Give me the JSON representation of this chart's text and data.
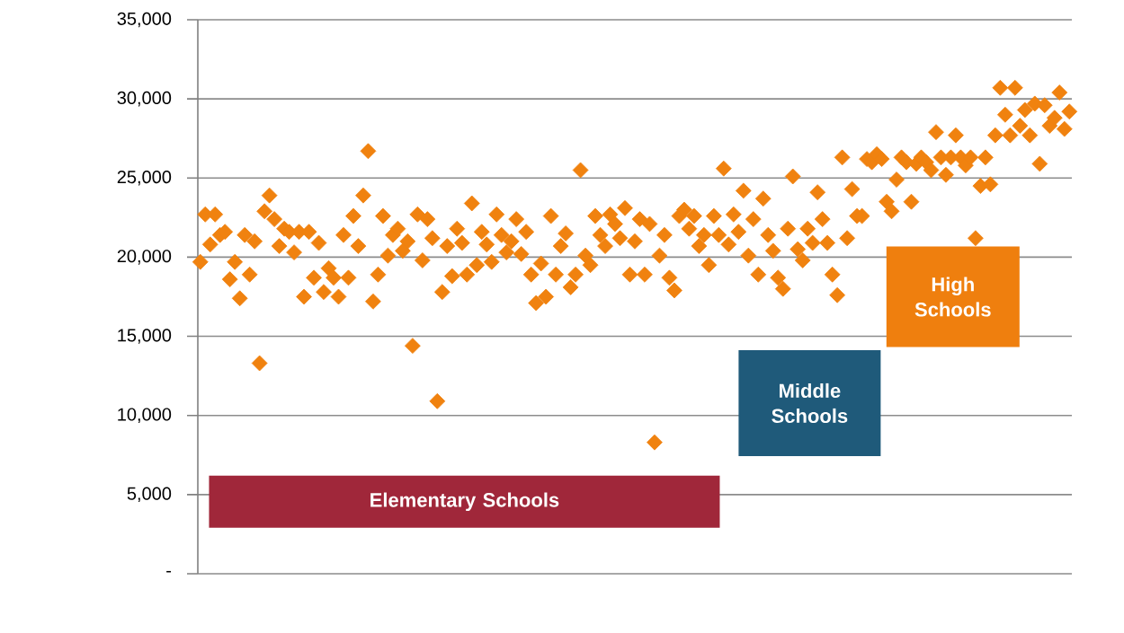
{
  "chart_data": {
    "type": "scatter",
    "color": "#f0820f",
    "marker": "diamond",
    "grid": "y",
    "tick_labels": "y",
    "ylim": [
      0,
      35000
    ],
    "yticks": [
      {
        "value": 0,
        "label": "-"
      },
      {
        "value": 5000,
        "label": "5,000"
      },
      {
        "value": 10000,
        "label": "10,000"
      },
      {
        "value": 15000,
        "label": "15,000"
      },
      {
        "value": 20000,
        "label": "20,000"
      },
      {
        "value": 25000,
        "label": "25,000"
      },
      {
        "value": 30000,
        "label": "30,000"
      },
      {
        "value": 35000,
        "label": "35,000"
      }
    ],
    "annotations": [
      "Elementary Schools",
      "Middle Schools",
      "High Schools"
    ],
    "categories": [
      null,
      null,
      null,
      null,
      null,
      null,
      null,
      null,
      null,
      null,
      null,
      null,
      null,
      null,
      null,
      null,
      null,
      null,
      null,
      null,
      null,
      null,
      null,
      null,
      null,
      null,
      null,
      null,
      null,
      null,
      null,
      null,
      null,
      null,
      null,
      null,
      null,
      null,
      null,
      null,
      null,
      null,
      null,
      null,
      null,
      null,
      null,
      null,
      null,
      null,
      null,
      null,
      null,
      null,
      null,
      null,
      null,
      null,
      null,
      null,
      null,
      null,
      null,
      null,
      null,
      null,
      null,
      null,
      null,
      null,
      null,
      null,
      null,
      null,
      null,
      null,
      null,
      null,
      null,
      null,
      null,
      null,
      null,
      null,
      null,
      null,
      null,
      null,
      null,
      null,
      null,
      null,
      null,
      null,
      null,
      null,
      null,
      null,
      null,
      null,
      null,
      null,
      null,
      null,
      null,
      null,
      null,
      null,
      null,
      null,
      null,
      null,
      null,
      null,
      null,
      null,
      null,
      null,
      null,
      null,
      null,
      null,
      null,
      null,
      null,
      null,
      null,
      null,
      null,
      null,
      null,
      null,
      null,
      null,
      null,
      null,
      null,
      null,
      null,
      null,
      null,
      null,
      null,
      null,
      null,
      null,
      null,
      null,
      null,
      null,
      null,
      null,
      null,
      null,
      null,
      null,
      null,
      null,
      null,
      null,
      null,
      null,
      null,
      null,
      null,
      null,
      null,
      null,
      null,
      null,
      null,
      null,
      null,
      null,
      null,
      null,
      null
    ],
    "values": [
      19700,
      22700,
      20800,
      22700,
      21400,
      21600,
      18600,
      19700,
      17400,
      21400,
      18900,
      21000,
      13300,
      22900,
      23900,
      22400,
      20700,
      21800,
      21600,
      20300,
      21600,
      17500,
      21600,
      18700,
      20900,
      17800,
      19300,
      18700,
      17500,
      21400,
      18700,
      22600,
      20700,
      23900,
      26700,
      17200,
      18900,
      22600,
      20100,
      21400,
      21800,
      20400,
      21000,
      14400,
      22700,
      19800,
      22400,
      21200,
      10900,
      17800,
      20700,
      18800,
      21800,
      20900,
      18900,
      23400,
      19500,
      21600,
      20800,
      19700,
      22700,
      21400,
      20300,
      21000,
      22400,
      20200,
      21600,
      18900,
      17100,
      19600,
      17500,
      22600,
      18900,
      20700,
      21500,
      18100,
      18900,
      25500,
      20100,
      19500,
      22600,
      21400,
      20700,
      22700,
      22100,
      21200,
      23100,
      18900,
      21000,
      22400,
      18900,
      22100,
      8300,
      20100,
      21400,
      18700,
      17900,
      22600,
      23000,
      21800,
      22600,
      20700,
      21400,
      19500,
      22600,
      21400,
      25600,
      20800,
      22700,
      21600,
      24200,
      20100,
      22400,
      18900,
      23700,
      21400,
      20400,
      18700,
      18000,
      21800,
      25100,
      20500,
      19800,
      21800,
      20900,
      24100,
      22400,
      20900,
      18900,
      17600,
      26300,
      21200,
      24300,
      22600,
      22600,
      26200,
      26000,
      26500,
      26200,
      23500,
      22900,
      24900,
      26300,
      26000,
      23500,
      25900,
      26300,
      26000,
      25500,
      27900,
      26300,
      25200,
      26300,
      27700,
      26300,
      25800,
      26300,
      21200,
      24500,
      26300,
      24600,
      27700,
      30700,
      29000,
      27700,
      30700,
      28300,
      29300,
      27700,
      29700,
      25900,
      29600,
      28300,
      28800,
      30400,
      28100,
      29200
    ]
  }
}
